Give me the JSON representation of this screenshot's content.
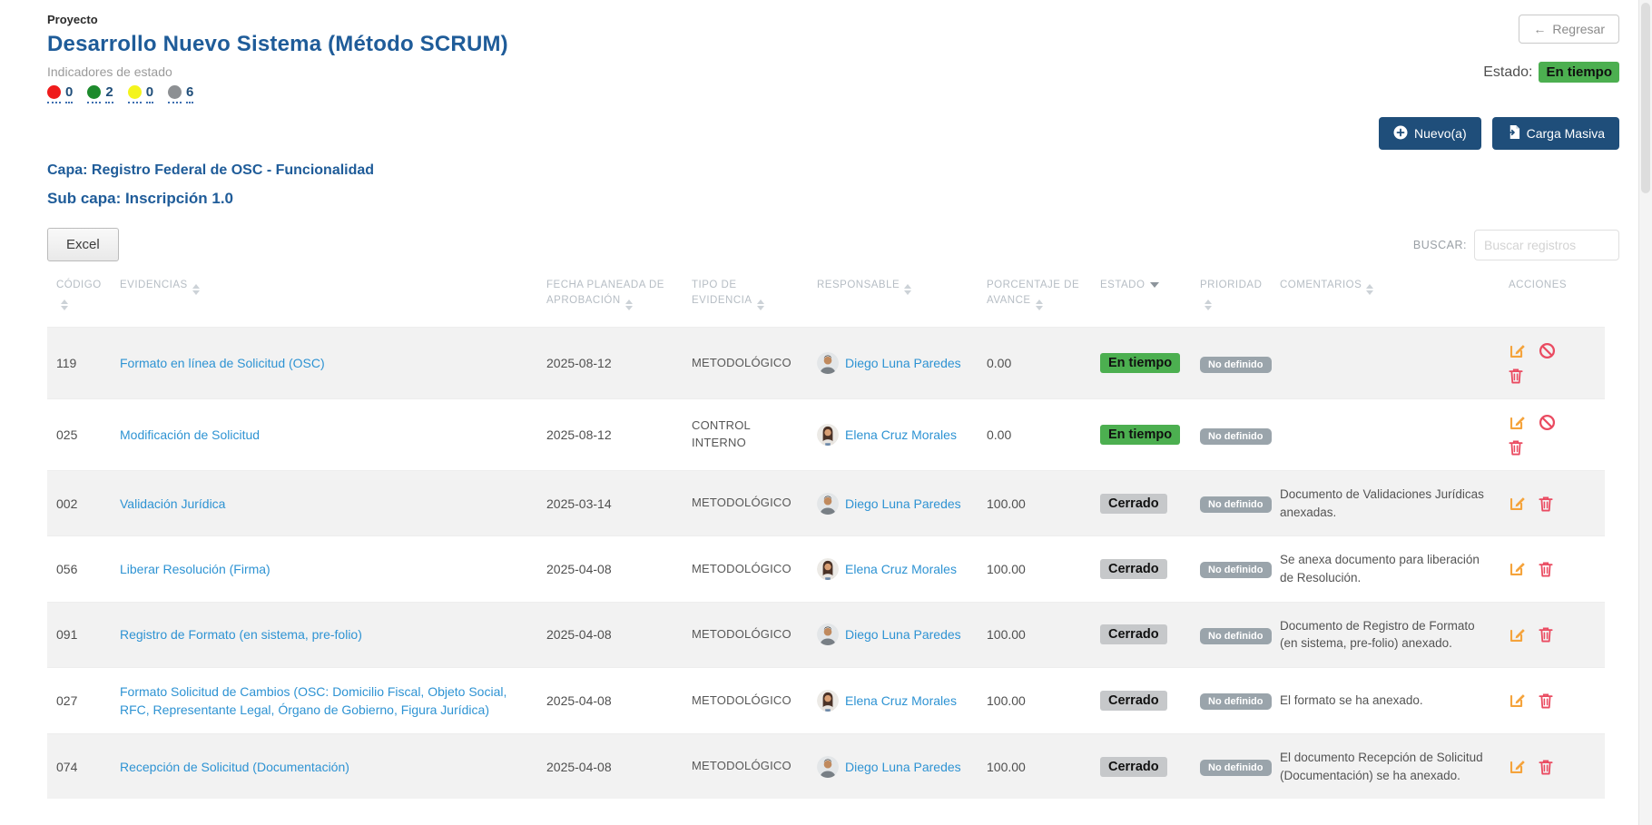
{
  "header": {
    "project_label": "Proyecto",
    "project_title": "Desarrollo Nuevo Sistema (Método SCRUM)",
    "indicators_label": "Indicadores de estado",
    "indicators": [
      {
        "name": "red-indicator",
        "color": "#ef1c1c",
        "count": "0"
      },
      {
        "name": "green-indicator",
        "color": "#1d8a2c",
        "count": "2"
      },
      {
        "name": "yellow-indicator",
        "color": "#f4f41c",
        "count": "0"
      },
      {
        "name": "gray-indicator",
        "color": "#8d9093",
        "count": "6"
      }
    ],
    "back_button": "Regresar",
    "estado_label": "Estado:",
    "estado_value": "En tiempo"
  },
  "toolbar": {
    "new_button": "Nuevo(a)",
    "bulk_button": "Carga Masiva"
  },
  "section": {
    "capa": "Capa: Registro Federal de OSC - Funcionalidad",
    "subcapa": "Sub capa: Inscripción 1.0"
  },
  "table_toolbar": {
    "excel_button": "Excel",
    "search_label": "BUSCAR:",
    "search_placeholder": "Buscar registros"
  },
  "table": {
    "columns": [
      {
        "label": "CÓDIGO",
        "sort": "both"
      },
      {
        "label": "EVIDENCIAS",
        "sort": "both"
      },
      {
        "label": "FECHA PLANEADA DE APROBACIÓN",
        "sort": "both"
      },
      {
        "label": "TIPO DE EVIDENCIA",
        "sort": "both"
      },
      {
        "label": "RESPONSABLE",
        "sort": "both"
      },
      {
        "label": "PORCENTAJE DE AVANCE",
        "sort": "both"
      },
      {
        "label": "ESTADO",
        "sort": "desc"
      },
      {
        "label": "PRIORIDAD",
        "sort": "both"
      },
      {
        "label": "COMENTARIOS",
        "sort": "both"
      },
      {
        "label": "ACCIONES",
        "sort": "none"
      }
    ],
    "rows": [
      {
        "codigo": "119",
        "evidencia": "Formato en línea de Solicitud (OSC)",
        "fecha": "2025-08-12",
        "tipo": "METODOLÓGICO",
        "responsable": "Diego Luna Paredes",
        "persona": "diego",
        "avance": "0.00",
        "estado": {
          "label": "En tiempo",
          "type": "ontime"
        },
        "prioridad": "No definido",
        "comentario": "",
        "acciones": [
          "edit",
          "ban",
          "delete"
        ]
      },
      {
        "codigo": "025",
        "evidencia": "Modificación de Solicitud",
        "fecha": "2025-08-12",
        "tipo": "CONTROL INTERNO",
        "responsable": "Elena Cruz Morales",
        "persona": "elena",
        "avance": "0.00",
        "estado": {
          "label": "En tiempo",
          "type": "ontime"
        },
        "prioridad": "No definido",
        "comentario": "",
        "acciones": [
          "edit",
          "ban",
          "delete"
        ]
      },
      {
        "codigo": "002",
        "evidencia": "Validación Jurídica",
        "fecha": "2025-03-14",
        "tipo": "METODOLÓGICO",
        "responsable": "Diego Luna Paredes",
        "persona": "diego",
        "avance": "100.00",
        "estado": {
          "label": "Cerrado",
          "type": "closed"
        },
        "prioridad": "No definido",
        "comentario": "Documento de Validaciones Jurídicas anexadas.",
        "acciones": [
          "edit",
          "delete"
        ]
      },
      {
        "codigo": "056",
        "evidencia": "Liberar Resolución (Firma)",
        "fecha": "2025-04-08",
        "tipo": "METODOLÓGICO",
        "responsable": "Elena Cruz Morales",
        "persona": "elena",
        "avance": "100.00",
        "estado": {
          "label": "Cerrado",
          "type": "closed"
        },
        "prioridad": "No definido",
        "comentario": "Se anexa documento para liberación de Resolución.",
        "acciones": [
          "edit",
          "delete"
        ]
      },
      {
        "codigo": "091",
        "evidencia": "Registro de Formato (en sistema, pre-folio)",
        "fecha": "2025-04-08",
        "tipo": "METODOLÓGICO",
        "responsable": "Diego Luna Paredes",
        "persona": "diego",
        "avance": "100.00",
        "estado": {
          "label": "Cerrado",
          "type": "closed"
        },
        "prioridad": "No definido",
        "comentario": "Documento de Registro de Formato (en sistema, pre-folio) anexado.",
        "acciones": [
          "edit",
          "delete"
        ]
      },
      {
        "codigo": "027",
        "evidencia": "Formato Solicitud de Cambios (OSC: Domicilio Fiscal, Objeto Social, RFC, Representante Legal, Órgano de Gobierno, Figura Jurídica)",
        "fecha": "2025-04-08",
        "tipo": "METODOLÓGICO",
        "responsable": "Elena Cruz Morales",
        "persona": "elena",
        "avance": "100.00",
        "estado": {
          "label": "Cerrado",
          "type": "closed"
        },
        "prioridad": "No definido",
        "comentario": "El formato se ha anexado.",
        "acciones": [
          "edit",
          "delete"
        ]
      },
      {
        "codigo": "074",
        "evidencia": "Recepción de Solicitud (Documentación)",
        "fecha": "2025-04-08",
        "tipo": "METODOLÓGICO",
        "responsable": "Diego Luna Paredes",
        "persona": "diego",
        "avance": "100.00",
        "estado": {
          "label": "Cerrado",
          "type": "closed"
        },
        "prioridad": "No definido",
        "comentario": "El documento Recepción de Solicitud (Documentación) se ha anexado.",
        "acciones": [
          "edit",
          "delete"
        ]
      }
    ]
  },
  "colors": {
    "primary_blue": "#1f4e7a",
    "heading_blue": "#1f5c99",
    "link_blue": "#2e93d3",
    "green_badge": "#4caf50",
    "closed_badge": "#c6c8ca",
    "priority_pill": "#9aa4ab",
    "edit_orange": "#f5a33b",
    "danger_red": "#ea4b61"
  }
}
